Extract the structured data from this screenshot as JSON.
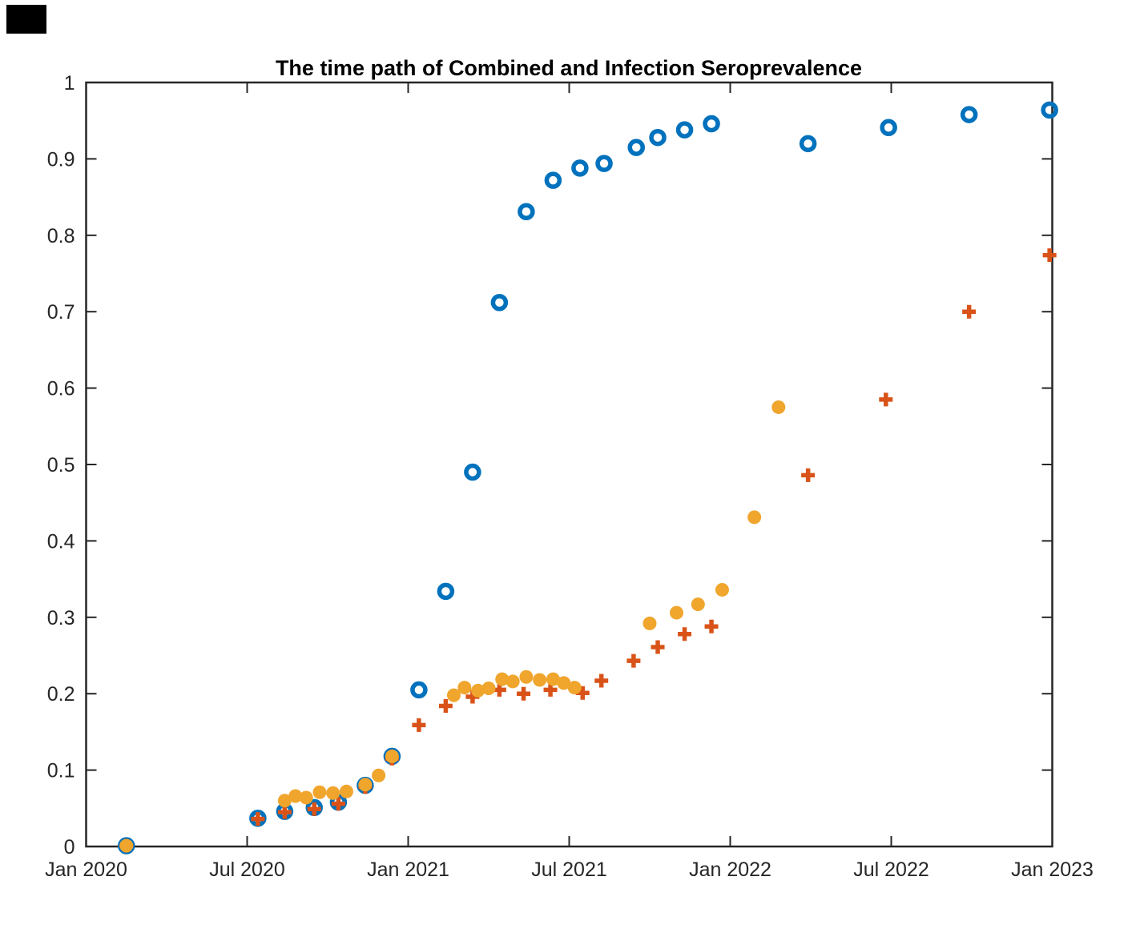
{
  "window": {
    "background_color": "#ffffff",
    "top_left_box_color": "#000000"
  },
  "chart_data": {
    "type": "scatter",
    "title": "The time path of Combined and Infection Seroprevalence",
    "xlabel": "",
    "ylabel": "",
    "x_unit": "months since Jan 2020",
    "xlim": [
      0,
      36
    ],
    "ylim": [
      0,
      1
    ],
    "grid": false,
    "box": true,
    "legend_position": "none",
    "axis_color": "#262626",
    "x_tick_positions": [
      0,
      6,
      12,
      18,
      24,
      30,
      36
    ],
    "x_tick_labels": [
      "Jan 2020",
      "Jul 2020",
      "Jan 2021",
      "Jul 2021",
      "Jan 2022",
      "Jul 2022",
      "Jan 2023"
    ],
    "y_tick_positions": [
      0,
      0.1,
      0.2,
      0.3,
      0.4,
      0.5,
      0.6,
      0.7,
      0.8,
      0.9,
      1
    ],
    "y_tick_labels": [
      "0",
      "0.1",
      "0.2",
      "0.3",
      "0.4",
      "0.5",
      "0.6",
      "0.7",
      "0.8",
      "0.9",
      "1"
    ],
    "series": [
      {
        "name": "blue-open-circles",
        "marker": "open-circle",
        "color": "#0072BD",
        "points": [
          [
            1.5,
            0.001
          ],
          [
            6.4,
            0.037
          ],
          [
            7.4,
            0.046
          ],
          [
            8.5,
            0.051
          ],
          [
            9.4,
            0.058
          ],
          [
            10.4,
            0.08
          ],
          [
            11.4,
            0.118
          ],
          [
            12.4,
            0.205
          ],
          [
            13.4,
            0.334
          ],
          [
            14.4,
            0.49
          ],
          [
            15.4,
            0.712
          ],
          [
            16.4,
            0.831
          ],
          [
            17.4,
            0.872
          ],
          [
            18.4,
            0.888
          ],
          [
            19.3,
            0.894
          ],
          [
            20.5,
            0.915
          ],
          [
            21.3,
            0.928
          ],
          [
            22.3,
            0.938
          ],
          [
            23.3,
            0.946
          ],
          [
            26.9,
            0.92
          ],
          [
            29.9,
            0.941
          ],
          [
            32.9,
            0.958
          ],
          [
            35.9,
            0.964
          ]
        ]
      },
      {
        "name": "orange-plus-markers",
        "marker": "plus",
        "color": "#D95319",
        "points": [
          [
            1.5,
            0.001
          ],
          [
            6.4,
            0.036
          ],
          [
            7.4,
            0.045
          ],
          [
            8.5,
            0.049
          ],
          [
            9.4,
            0.056
          ],
          [
            10.4,
            0.078
          ],
          [
            11.4,
            0.115
          ],
          [
            12.4,
            0.159
          ],
          [
            13.4,
            0.184
          ],
          [
            14.4,
            0.196
          ],
          [
            15.4,
            0.205
          ],
          [
            16.3,
            0.2
          ],
          [
            17.3,
            0.205
          ],
          [
            18.5,
            0.201
          ],
          [
            19.2,
            0.217
          ],
          [
            20.4,
            0.243
          ],
          [
            21.3,
            0.261
          ],
          [
            22.3,
            0.278
          ],
          [
            23.3,
            0.288
          ],
          [
            26.9,
            0.486
          ],
          [
            29.8,
            0.585
          ],
          [
            32.9,
            0.7
          ],
          [
            35.9,
            0.774
          ]
        ]
      },
      {
        "name": "yellow-filled-circles",
        "marker": "filled-circle",
        "color": "#F0A52D",
        "points": [
          [
            1.5,
            0.001
          ],
          [
            7.4,
            0.06
          ],
          [
            7.8,
            0.066
          ],
          [
            8.2,
            0.064
          ],
          [
            8.7,
            0.071
          ],
          [
            9.2,
            0.07
          ],
          [
            9.7,
            0.072
          ],
          [
            10.4,
            0.081
          ],
          [
            10.9,
            0.093
          ],
          [
            11.4,
            0.118
          ],
          [
            13.7,
            0.198
          ],
          [
            14.1,
            0.208
          ],
          [
            14.6,
            0.204
          ],
          [
            15.0,
            0.207
          ],
          [
            15.5,
            0.219
          ],
          [
            15.9,
            0.216
          ],
          [
            16.4,
            0.222
          ],
          [
            16.9,
            0.218
          ],
          [
            17.4,
            0.219
          ],
          [
            17.8,
            0.214
          ],
          [
            18.2,
            0.208
          ],
          [
            21.0,
            0.292
          ],
          [
            22.0,
            0.306
          ],
          [
            22.8,
            0.317
          ],
          [
            23.7,
            0.336
          ],
          [
            24.9,
            0.431
          ],
          [
            25.8,
            0.575
          ]
        ]
      }
    ]
  }
}
